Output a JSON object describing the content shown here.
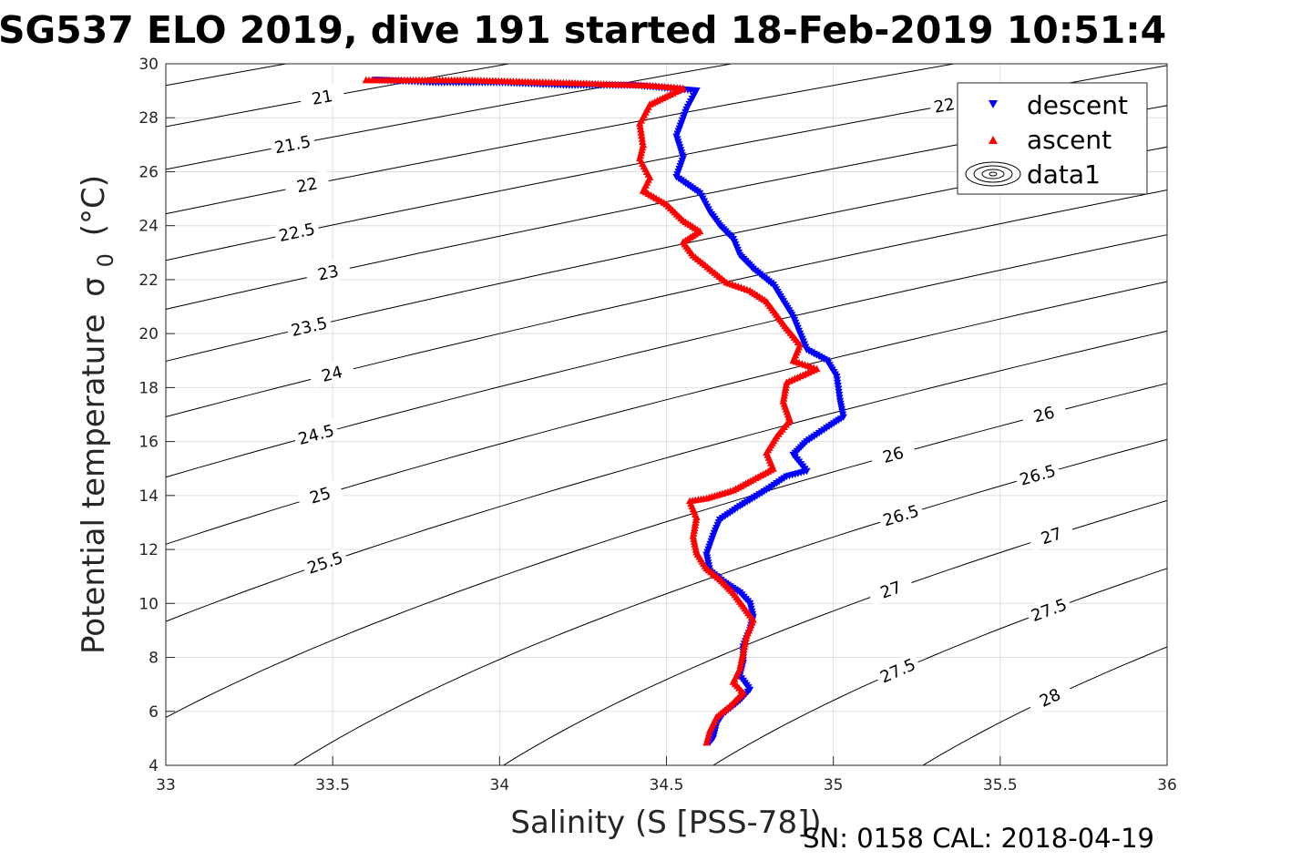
{
  "chart_data": {
    "type": "scatter",
    "title": "SG537 ELO 2019, dive 191 started 18-Feb-2019 10:51:4",
    "xlabel": "Salinity (S [PSS-78])",
    "ylabel": "Potential temperature",
    "ylabel_symbol": "σ",
    "ylabel_subscript": "0",
    "ylabel_unit": "(°C)",
    "xlim": [
      33,
      36
    ],
    "ylim": [
      4,
      30
    ],
    "xticks": [
      "33",
      "33.5",
      "34",
      "34.5",
      "35",
      "35.5",
      "36"
    ],
    "yticks": [
      "4",
      "6",
      "8",
      "10",
      "12",
      "14",
      "16",
      "18",
      "20",
      "22",
      "24",
      "26",
      "28",
      "30"
    ],
    "grid": true,
    "legend_position": "top-right",
    "legend": [
      {
        "label": "descent",
        "marker": "triangle-down",
        "color": "#0000ff"
      },
      {
        "label": "ascent",
        "marker": "triangle-up",
        "color": "#ff0000"
      },
      {
        "label": "data1",
        "marker": "contour",
        "color": "#000000"
      }
    ],
    "contour_levels": [
      "20.5",
      "21",
      "21.5",
      "22",
      "22.5",
      "23",
      "23.5",
      "24",
      "24.5",
      "25",
      "25.5",
      "26",
      "26.5",
      "27",
      "27.5",
      "28"
    ],
    "series": [
      {
        "name": "descent",
        "color": "#0000ff",
        "marker": "triangle-down",
        "points": [
          [
            33.63,
            29.4
          ],
          [
            33.8,
            29.3
          ],
          [
            34.0,
            29.3
          ],
          [
            34.2,
            29.2
          ],
          [
            34.4,
            29.2
          ],
          [
            34.59,
            29.0
          ],
          [
            34.56,
            28.3
          ],
          [
            34.53,
            27.3
          ],
          [
            34.55,
            26.5
          ],
          [
            34.53,
            25.8
          ],
          [
            34.6,
            25.2
          ],
          [
            34.63,
            24.5
          ],
          [
            34.66,
            24.0
          ],
          [
            34.7,
            23.5
          ],
          [
            34.72,
            22.9
          ],
          [
            34.76,
            22.4
          ],
          [
            34.82,
            21.8
          ],
          [
            34.85,
            21.2
          ],
          [
            34.88,
            20.6
          ],
          [
            34.9,
            20.0
          ],
          [
            34.92,
            19.4
          ],
          [
            34.98,
            19.0
          ],
          [
            35.01,
            18.4
          ],
          [
            35.02,
            17.5
          ],
          [
            35.03,
            16.9
          ],
          [
            34.98,
            16.5
          ],
          [
            34.92,
            16.0
          ],
          [
            34.88,
            15.5
          ],
          [
            34.92,
            14.9
          ],
          [
            34.86,
            14.7
          ],
          [
            34.8,
            14.2
          ],
          [
            34.72,
            13.6
          ],
          [
            34.66,
            13.1
          ],
          [
            34.64,
            12.5
          ],
          [
            34.62,
            11.8
          ],
          [
            34.63,
            11.2
          ],
          [
            34.67,
            10.8
          ],
          [
            34.72,
            10.4
          ],
          [
            34.75,
            10.0
          ],
          [
            34.76,
            9.5
          ],
          [
            34.75,
            9.0
          ],
          [
            34.73,
            8.4
          ],
          [
            34.73,
            7.8
          ],
          [
            34.72,
            7.3
          ],
          [
            34.75,
            6.8
          ],
          [
            34.72,
            6.4
          ],
          [
            34.67,
            5.9
          ],
          [
            34.65,
            5.5
          ],
          [
            34.64,
            5.0
          ],
          [
            34.63,
            4.85
          ]
        ]
      },
      {
        "name": "ascent",
        "color": "#ff0000",
        "marker": "triangle-up",
        "points": [
          [
            33.6,
            29.4
          ],
          [
            33.9,
            29.4
          ],
          [
            34.2,
            29.3
          ],
          [
            34.45,
            29.2
          ],
          [
            34.55,
            29.1
          ],
          [
            34.45,
            28.5
          ],
          [
            34.42,
            27.8
          ],
          [
            34.43,
            27.0
          ],
          [
            34.42,
            26.5
          ],
          [
            34.45,
            25.8
          ],
          [
            34.43,
            25.3
          ],
          [
            34.5,
            24.8
          ],
          [
            34.55,
            24.2
          ],
          [
            34.6,
            23.8
          ],
          [
            34.55,
            23.4
          ],
          [
            34.58,
            22.9
          ],
          [
            34.63,
            22.4
          ],
          [
            34.68,
            21.9
          ],
          [
            34.75,
            21.6
          ],
          [
            34.8,
            21.2
          ],
          [
            34.83,
            20.7
          ],
          [
            34.86,
            20.2
          ],
          [
            34.9,
            19.6
          ],
          [
            34.88,
            19.0
          ],
          [
            34.95,
            18.7
          ],
          [
            34.86,
            18.2
          ],
          [
            34.85,
            17.5
          ],
          [
            34.87,
            16.8
          ],
          [
            34.83,
            16.2
          ],
          [
            34.8,
            15.6
          ],
          [
            34.82,
            15.0
          ],
          [
            34.76,
            14.6
          ],
          [
            34.7,
            14.2
          ],
          [
            34.62,
            13.9
          ],
          [
            34.57,
            13.8
          ],
          [
            34.59,
            13.2
          ],
          [
            34.58,
            12.5
          ],
          [
            34.59,
            11.9
          ],
          [
            34.62,
            11.3
          ],
          [
            34.66,
            10.9
          ],
          [
            34.7,
            10.4
          ],
          [
            34.73,
            9.9
          ],
          [
            34.76,
            9.4
          ],
          [
            34.74,
            8.8
          ],
          [
            34.73,
            8.2
          ],
          [
            34.72,
            7.6
          ],
          [
            34.7,
            7.1
          ],
          [
            34.73,
            6.7
          ],
          [
            34.69,
            6.2
          ],
          [
            34.65,
            5.8
          ],
          [
            34.63,
            5.3
          ],
          [
            34.62,
            4.85
          ]
        ]
      }
    ]
  },
  "footer": {
    "sensor_info": "SN: 0158  CAL: 2018-04-19"
  }
}
